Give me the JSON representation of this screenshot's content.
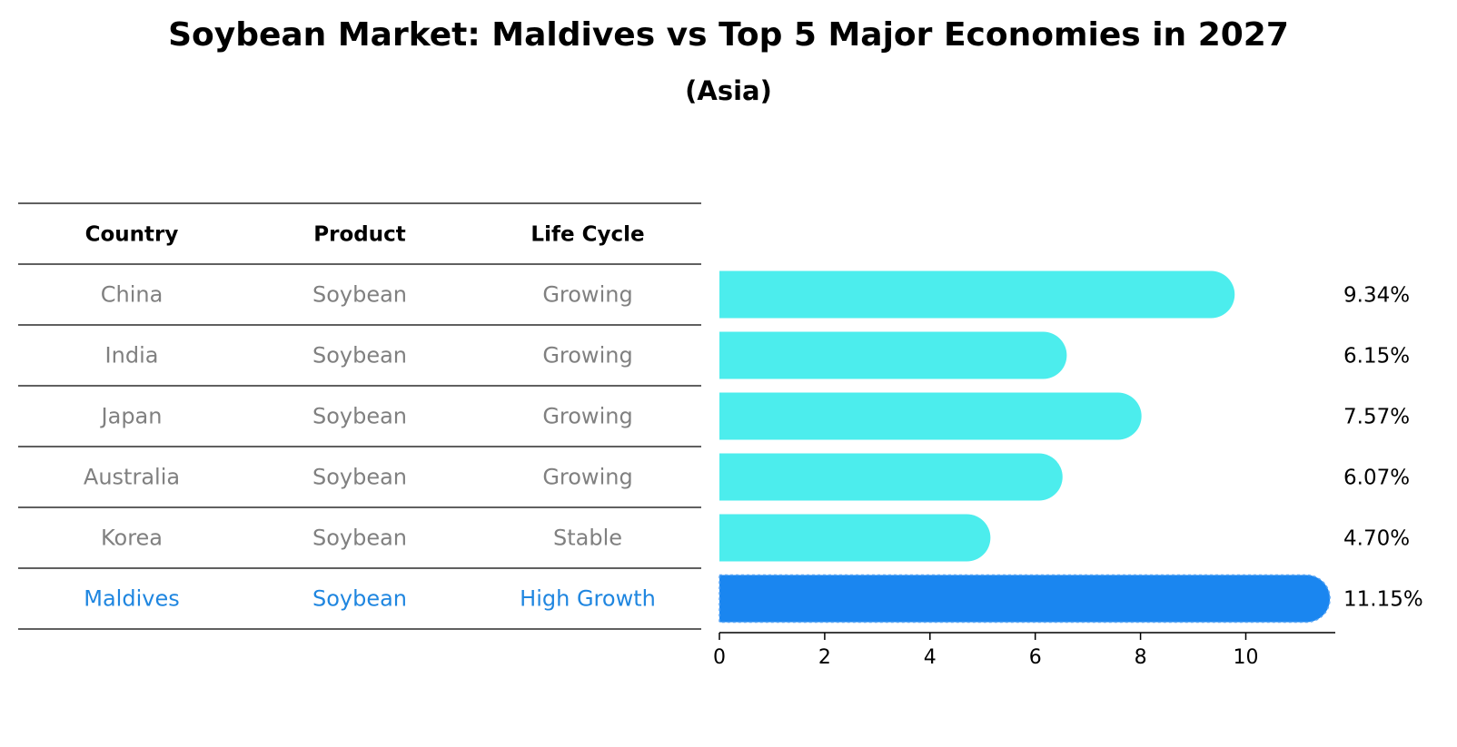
{
  "chart_data": {
    "type": "bar",
    "orientation": "horizontal",
    "title": "Soybean Market: Maldives vs Top 5 Major Economies in 2027",
    "subtitle": "(Asia)",
    "table": {
      "columns": [
        "Country",
        "Product",
        "Life Cycle"
      ],
      "rows": [
        [
          "China",
          "Soybean",
          "Growing"
        ],
        [
          "India",
          "Soybean",
          "Growing"
        ],
        [
          "Japan",
          "Soybean",
          "Growing"
        ],
        [
          "Australia",
          "Soybean",
          "Growing"
        ],
        [
          "Korea",
          "Soybean",
          "Stable"
        ],
        [
          "Maldives",
          "Soybean",
          "High Growth"
        ]
      ]
    },
    "categories": [
      "China",
      "India",
      "Japan",
      "Australia",
      "Korea",
      "Maldives"
    ],
    "values": [
      9.34,
      6.15,
      7.57,
      6.07,
      4.7,
      11.15
    ],
    "value_labels": [
      "9.34%",
      "6.15%",
      "7.57%",
      "6.07%",
      "4.70%",
      "11.15%"
    ],
    "highlight": "Maldives",
    "xlim": [
      0,
      11.7
    ],
    "xticks": [
      0,
      2,
      4,
      6,
      8,
      10
    ],
    "xlabel": "",
    "ylabel": "",
    "colors": {
      "bar": "#4ceded",
      "highlight_bar": "#1a86f0",
      "highlight_text": "#1f86e0",
      "cell_text": "#808080"
    }
  }
}
